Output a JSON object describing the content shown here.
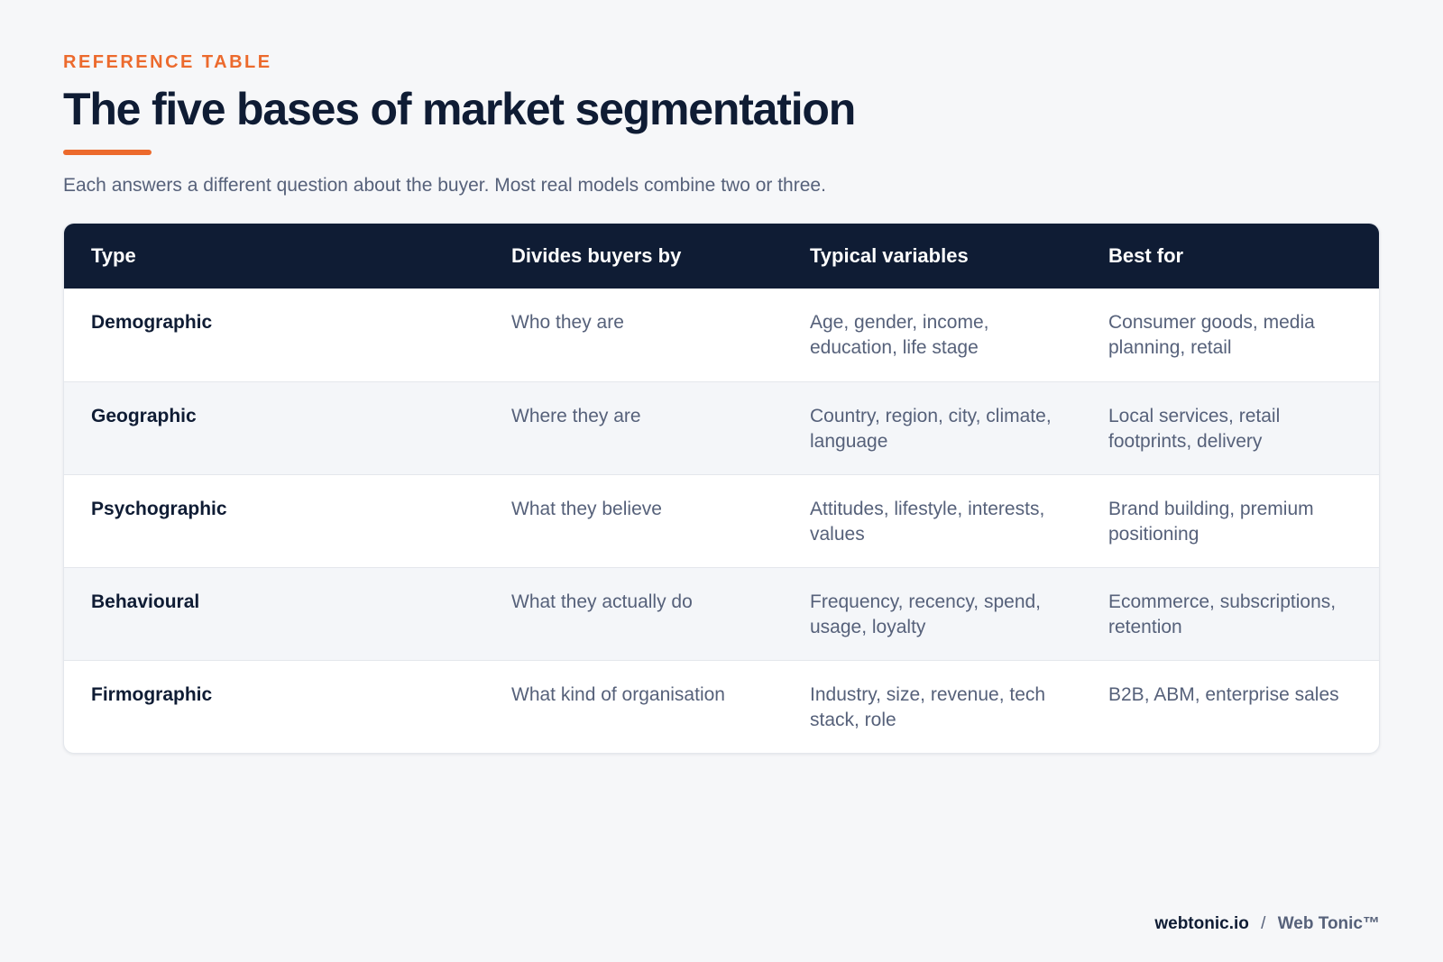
{
  "header": {
    "eyebrow": "REFERENCE TABLE",
    "title": "The five bases of market segmentation",
    "subtitle": "Each answers a different question about the buyer. Most real models combine two or three."
  },
  "table": {
    "columns": [
      "Type",
      "Divides buyers by",
      "Typical variables",
      "Best for"
    ],
    "rows": [
      {
        "type": "Demographic",
        "divides_by": "Who they are",
        "variables": "Age, gender, income, education, life stage",
        "best_for": "Consumer goods, media planning, retail"
      },
      {
        "type": "Geographic",
        "divides_by": "Where they are",
        "variables": "Country, region, city, climate, language",
        "best_for": "Local services, retail footprints, delivery"
      },
      {
        "type": "Psychographic",
        "divides_by": "What they believe",
        "variables": "Attitudes, lifestyle, interests, values",
        "best_for": "Brand building, premium positioning"
      },
      {
        "type": "Behavioural",
        "divides_by": "What they actually do",
        "variables": "Frequency, recency, spend, usage, loyalty",
        "best_for": "Ecommerce, subscriptions, retention"
      },
      {
        "type": "Firmographic",
        "divides_by": "What kind of organisation",
        "variables": "Industry, size, revenue, tech stack, role",
        "best_for": "B2B, ABM, enterprise sales"
      }
    ]
  },
  "footer": {
    "site": "webtonic.io",
    "separator": "/",
    "brand": "Web Tonic™"
  },
  "colors": {
    "accent": "#ec6a2d",
    "navy": "#0f1c34",
    "muted_text": "#56617a",
    "background": "#f6f7f9"
  }
}
